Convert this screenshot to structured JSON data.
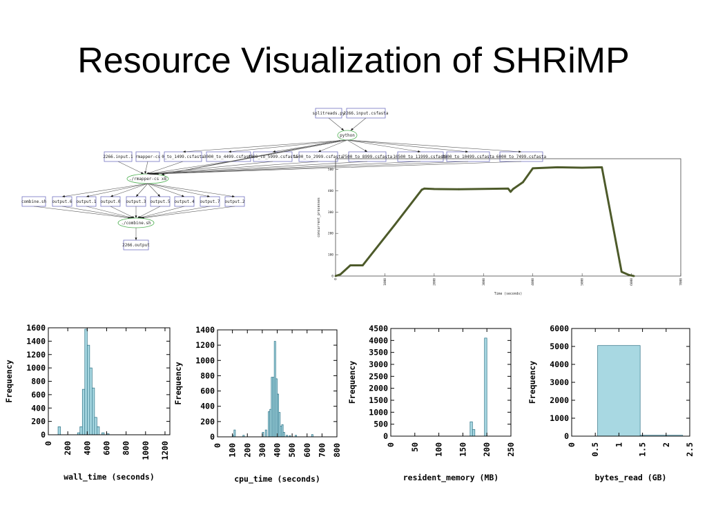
{
  "slide": {
    "title": "Resource Visualization of SHRiMP"
  },
  "workflow_graph": {
    "top_files": [
      "splitreads.py",
      "2266.input.csfasta"
    ],
    "python_node": "python",
    "split_files": [
      "2266.input.1",
      "rmapper-cs",
      "0_to_1499.csfasta",
      "3000_to_4499.csfasta",
      "4500_to_5999.csfasta",
      "1500_to_2999.csfasta",
      "7500_to_8999.csfasta",
      "10500_to_11999.csfasta",
      "9000_to_10499.csfasta",
      "6000_to_7499.csfasta"
    ],
    "mapper_node": "./rmapper-cs x8",
    "outputs": [
      "combine.sh",
      "output.6",
      "output.1",
      "output.0",
      "output.3",
      "output.5",
      "output.4",
      "output.7",
      "output.2"
    ],
    "combine_node": "./combine.sh",
    "final_output": "2266.output"
  },
  "chart_data": [
    {
      "type": "line",
      "xlabel": "Time (seconds)",
      "ylabel": "concurrent_processes",
      "xlim": [
        0,
        7000
      ],
      "ylim": [
        0,
        550
      ],
      "xticks": [
        0,
        1000,
        2000,
        3000,
        4000,
        5000,
        6000,
        7000
      ],
      "yticks": [
        0,
        100,
        200,
        300,
        400,
        500
      ],
      "color": "#4d5a2a",
      "x": [
        0,
        100,
        300,
        550,
        1200,
        1750,
        1800,
        2000,
        2500,
        3500,
        3550,
        3600,
        3800,
        4000,
        4500,
        5000,
        5400,
        5800,
        5950,
        6050
      ],
      "y": [
        0,
        8,
        50,
        50,
        240,
        405,
        410,
        408,
        407,
        410,
        395,
        408,
        440,
        505,
        510,
        508,
        510,
        20,
        5,
        0
      ]
    },
    {
      "type": "bar",
      "xlabel": "wall_time (seconds)",
      "ylabel": "Frequency",
      "xlim": [
        0,
        1250
      ],
      "ylim": [
        0,
        1600
      ],
      "xticks": [
        0,
        200,
        400,
        600,
        800,
        1000,
        1200
      ],
      "yticks": [
        0,
        200,
        400,
        600,
        800,
        1000,
        1200,
        1400,
        1600
      ],
      "bin_starts": [
        100,
        300,
        325,
        350,
        375,
        400,
        425,
        450,
        475,
        500,
        550,
        600
      ],
      "bin_width": 25,
      "values": [
        120,
        30,
        120,
        680,
        1580,
        1340,
        1000,
        700,
        260,
        120,
        30,
        15
      ],
      "color": "#a8d8e2"
    },
    {
      "type": "bar",
      "xlabel": "cpu_time (seconds)",
      "ylabel": "Frequency",
      "xlim": [
        0,
        800
      ],
      "ylim": [
        0,
        1400
      ],
      "xticks": [
        0,
        100,
        200,
        300,
        400,
        500,
        600,
        700,
        800
      ],
      "yticks": [
        0,
        200,
        400,
        600,
        800,
        1000,
        1200,
        1400
      ],
      "bin_starts": [
        100,
        110,
        170,
        300,
        320,
        340,
        350,
        360,
        370,
        380,
        390,
        400,
        410,
        420,
        430,
        440,
        460,
        480,
        520,
        630
      ],
      "bin_width": 10,
      "values": [
        20,
        90,
        20,
        60,
        90,
        330,
        360,
        780,
        780,
        1250,
        760,
        560,
        320,
        140,
        160,
        60,
        20,
        15,
        20,
        30
      ],
      "color": "#a8d8e2"
    },
    {
      "type": "bar",
      "xlabel": "resident_memory (MB)",
      "ylabel": "Frequency",
      "xlim": [
        0,
        250
      ],
      "ylim": [
        0,
        4500
      ],
      "xticks": [
        0,
        50,
        100,
        150,
        200,
        250
      ],
      "yticks": [
        0,
        500,
        1000,
        1500,
        2000,
        2500,
        3000,
        3500,
        4000,
        4500
      ],
      "bin_starts": [
        165,
        170,
        195
      ],
      "bin_width": 5,
      "values": [
        600,
        280,
        4100
      ],
      "color": "#a8d8e2"
    },
    {
      "type": "bar",
      "xlabel": "bytes_read (GB)",
      "ylabel": "Frequency",
      "xlim": [
        0,
        2.5
      ],
      "ylim": [
        0,
        6000
      ],
      "xticks": [
        "0",
        "0.5",
        "1",
        "1.5",
        "2",
        "2.5"
      ],
      "yticks": [
        0,
        1000,
        2000,
        3000,
        4000,
        5000,
        6000
      ],
      "bin_starts": [
        0.55,
        1.45
      ],
      "bin_width": 0.9,
      "values": [
        5050,
        50
      ],
      "color": "#a8d8e2"
    }
  ]
}
